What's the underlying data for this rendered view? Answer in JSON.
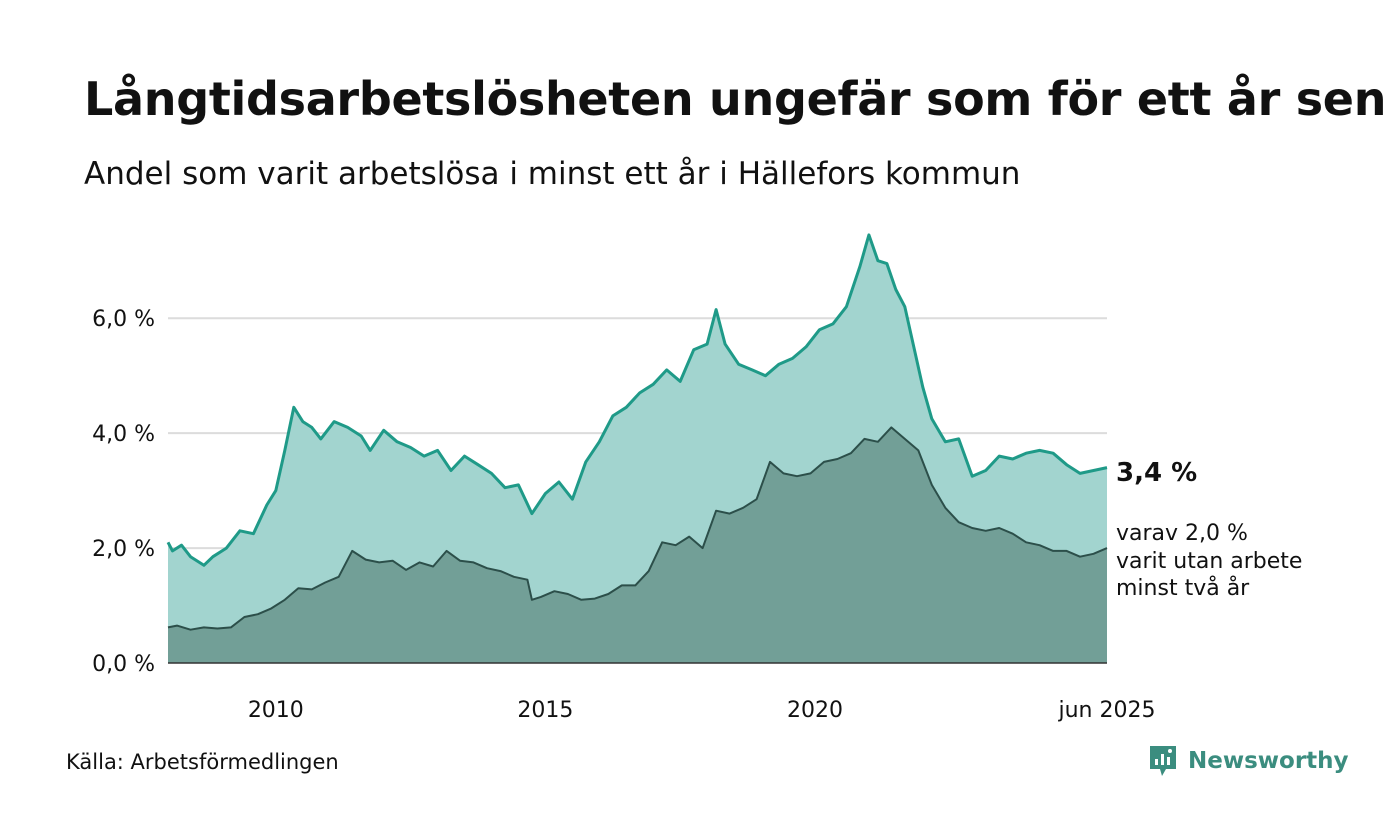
{
  "title": "Långtidsarbetslösheten ungefär som för ett år sen",
  "subtitle": "Andel som varit arbetslösa i minst ett år i Hällefors kommun",
  "source": "Källa: Arbetsförmedlingen",
  "brand": {
    "name": "Newsworthy",
    "icon": "newsworthy-logo-icon",
    "color": "#3b8d7f"
  },
  "colors": {
    "series1_line": "#1f9a88",
    "series1_fill": "#a2d4cf",
    "series2_line": "#2c4f4a",
    "series2_fill": "#729f97",
    "grid": "#dcdcdc"
  },
  "chart_data": {
    "type": "area",
    "x_unit": "date",
    "x_start": "2008-01",
    "x_end": "2025-06",
    "xlim": [
      "2008-01",
      "2025-06"
    ],
    "ylim": [
      0,
      7.5
    ],
    "grid": true,
    "y_ticks": [
      {
        "value": 0,
        "label": "0,0 %"
      },
      {
        "value": 2,
        "label": "2,0 %"
      },
      {
        "value": 4,
        "label": "4,0 %"
      },
      {
        "value": 6,
        "label": "6,0 %"
      }
    ],
    "x_ticks": [
      {
        "date": "2010-01",
        "label": "2010"
      },
      {
        "date": "2015-01",
        "label": "2015"
      },
      {
        "date": "2020-01",
        "label": "2020"
      },
      {
        "date": "2025-06",
        "label": "jun 2025"
      }
    ],
    "series": [
      {
        "key": "minst-ett-ar",
        "points": [
          [
            "2008-01",
            2.1
          ],
          [
            "2008-02",
            1.95
          ],
          [
            "2008-04",
            2.05
          ],
          [
            "2008-06",
            1.85
          ],
          [
            "2008-09",
            1.7
          ],
          [
            "2008-11",
            1.85
          ],
          [
            "2009-02",
            2.0
          ],
          [
            "2009-05",
            2.3
          ],
          [
            "2009-08",
            2.25
          ],
          [
            "2009-11",
            2.75
          ],
          [
            "2010-01",
            3.0
          ],
          [
            "2010-03",
            3.7
          ],
          [
            "2010-05",
            4.45
          ],
          [
            "2010-07",
            4.2
          ],
          [
            "2010-09",
            4.1
          ],
          [
            "2010-11",
            3.9
          ],
          [
            "2011-02",
            4.2
          ],
          [
            "2011-05",
            4.1
          ],
          [
            "2011-08",
            3.95
          ],
          [
            "2011-10",
            3.7
          ],
          [
            "2012-01",
            4.05
          ],
          [
            "2012-04",
            3.85
          ],
          [
            "2012-07",
            3.75
          ],
          [
            "2012-10",
            3.6
          ],
          [
            "2013-01",
            3.7
          ],
          [
            "2013-04",
            3.35
          ],
          [
            "2013-07",
            3.6
          ],
          [
            "2013-10",
            3.45
          ],
          [
            "2014-01",
            3.3
          ],
          [
            "2014-04",
            3.05
          ],
          [
            "2014-07",
            3.1
          ],
          [
            "2014-10",
            2.6
          ],
          [
            "2015-01",
            2.95
          ],
          [
            "2015-04",
            3.15
          ],
          [
            "2015-07",
            2.85
          ],
          [
            "2015-10",
            3.5
          ],
          [
            "2016-01",
            3.85
          ],
          [
            "2016-04",
            4.3
          ],
          [
            "2016-07",
            4.45
          ],
          [
            "2016-10",
            4.7
          ],
          [
            "2017-01",
            4.85
          ],
          [
            "2017-04",
            5.1
          ],
          [
            "2017-07",
            4.9
          ],
          [
            "2017-10",
            5.45
          ],
          [
            "2018-01",
            5.55
          ],
          [
            "2018-03",
            6.15
          ],
          [
            "2018-05",
            5.55
          ],
          [
            "2018-08",
            5.2
          ],
          [
            "2018-11",
            5.1
          ],
          [
            "2019-02",
            5.0
          ],
          [
            "2019-05",
            5.2
          ],
          [
            "2019-08",
            5.3
          ],
          [
            "2019-11",
            5.5
          ],
          [
            "2020-02",
            5.8
          ],
          [
            "2020-05",
            5.9
          ],
          [
            "2020-08",
            6.2
          ],
          [
            "2020-11",
            6.9
          ],
          [
            "2021-01",
            7.45
          ],
          [
            "2021-03",
            7.0
          ],
          [
            "2021-05",
            6.95
          ],
          [
            "2021-07",
            6.5
          ],
          [
            "2021-09",
            6.2
          ],
          [
            "2021-11",
            5.5
          ],
          [
            "2022-01",
            4.8
          ],
          [
            "2022-03",
            4.25
          ],
          [
            "2022-06",
            3.85
          ],
          [
            "2022-09",
            3.9
          ],
          [
            "2022-12",
            3.25
          ],
          [
            "2023-03",
            3.35
          ],
          [
            "2023-06",
            3.6
          ],
          [
            "2023-09",
            3.55
          ],
          [
            "2023-12",
            3.65
          ],
          [
            "2024-03",
            3.7
          ],
          [
            "2024-06",
            3.65
          ],
          [
            "2024-09",
            3.45
          ],
          [
            "2024-12",
            3.3
          ],
          [
            "2025-03",
            3.35
          ],
          [
            "2025-06",
            3.4
          ]
        ]
      },
      {
        "key": "minst-tva-ar",
        "points": [
          [
            "2008-01",
            0.62
          ],
          [
            "2008-03",
            0.65
          ],
          [
            "2008-06",
            0.58
          ],
          [
            "2008-09",
            0.62
          ],
          [
            "2008-12",
            0.6
          ],
          [
            "2009-03",
            0.62
          ],
          [
            "2009-06",
            0.8
          ],
          [
            "2009-09",
            0.85
          ],
          [
            "2009-12",
            0.95
          ],
          [
            "2010-03",
            1.1
          ],
          [
            "2010-06",
            1.3
          ],
          [
            "2010-09",
            1.28
          ],
          [
            "2010-12",
            1.4
          ],
          [
            "2011-03",
            1.5
          ],
          [
            "2011-06",
            1.95
          ],
          [
            "2011-09",
            1.8
          ],
          [
            "2011-12",
            1.75
          ],
          [
            "2012-03",
            1.78
          ],
          [
            "2012-06",
            1.62
          ],
          [
            "2012-09",
            1.75
          ],
          [
            "2012-12",
            1.68
          ],
          [
            "2013-03",
            1.95
          ],
          [
            "2013-06",
            1.78
          ],
          [
            "2013-09",
            1.75
          ],
          [
            "2013-12",
            1.65
          ],
          [
            "2014-03",
            1.6
          ],
          [
            "2014-06",
            1.5
          ],
          [
            "2014-09",
            1.45
          ],
          [
            "2014-10",
            1.1
          ],
          [
            "2014-12",
            1.15
          ],
          [
            "2015-03",
            1.25
          ],
          [
            "2015-06",
            1.2
          ],
          [
            "2015-09",
            1.1
          ],
          [
            "2015-12",
            1.12
          ],
          [
            "2016-03",
            1.2
          ],
          [
            "2016-06",
            1.35
          ],
          [
            "2016-09",
            1.35
          ],
          [
            "2016-12",
            1.6
          ],
          [
            "2017-03",
            2.1
          ],
          [
            "2017-06",
            2.05
          ],
          [
            "2017-09",
            2.2
          ],
          [
            "2017-12",
            2.0
          ],
          [
            "2018-03",
            2.65
          ],
          [
            "2018-06",
            2.6
          ],
          [
            "2018-09",
            2.7
          ],
          [
            "2018-12",
            2.85
          ],
          [
            "2019-03",
            3.5
          ],
          [
            "2019-06",
            3.3
          ],
          [
            "2019-09",
            3.25
          ],
          [
            "2019-12",
            3.3
          ],
          [
            "2020-03",
            3.5
          ],
          [
            "2020-06",
            3.55
          ],
          [
            "2020-09",
            3.65
          ],
          [
            "2020-12",
            3.9
          ],
          [
            "2021-03",
            3.85
          ],
          [
            "2021-06",
            4.1
          ],
          [
            "2021-09",
            3.9
          ],
          [
            "2021-12",
            3.7
          ],
          [
            "2022-03",
            3.1
          ],
          [
            "2022-06",
            2.7
          ],
          [
            "2022-09",
            2.45
          ],
          [
            "2022-12",
            2.35
          ],
          [
            "2023-03",
            2.3
          ],
          [
            "2023-06",
            2.35
          ],
          [
            "2023-09",
            2.25
          ],
          [
            "2023-12",
            2.1
          ],
          [
            "2024-03",
            2.05
          ],
          [
            "2024-06",
            1.95
          ],
          [
            "2024-09",
            1.95
          ],
          [
            "2024-12",
            1.85
          ],
          [
            "2025-03",
            1.9
          ],
          [
            "2025-06",
            2.0
          ]
        ]
      }
    ],
    "end_labels": {
      "primary": "3,4 %",
      "secondary": [
        "varav 2,0 %",
        "varit utan arbete",
        "minst två år"
      ]
    }
  }
}
